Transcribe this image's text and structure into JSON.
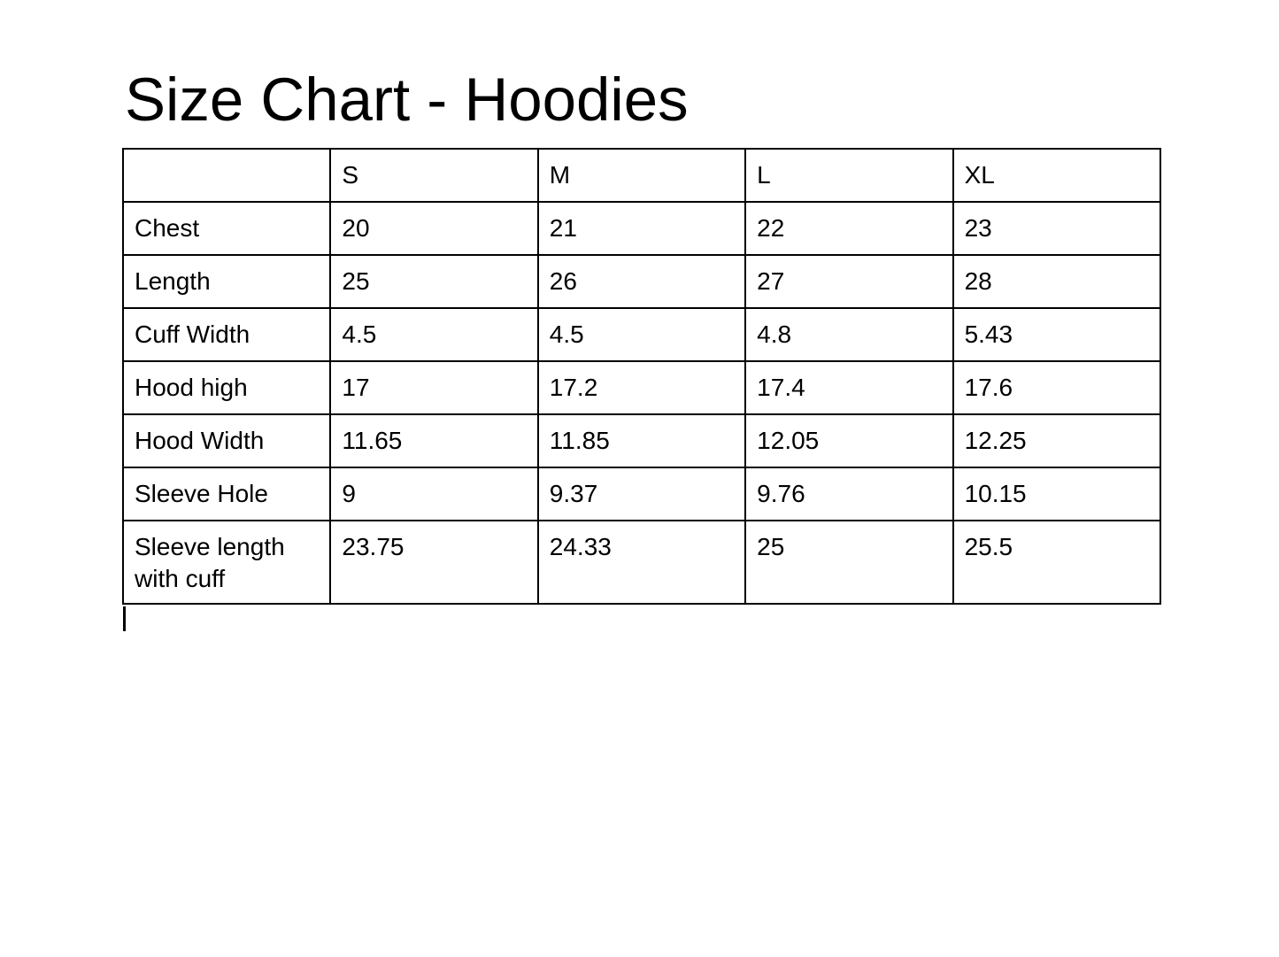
{
  "page": {
    "title": "Size Chart - Hoodies",
    "background_color": "#ffffff",
    "text_color": "#000000"
  },
  "size_chart": {
    "border_color": "#000000",
    "column_headers": [
      "",
      "S",
      "M",
      "L",
      "XL"
    ],
    "rows": [
      {
        "label": "Chest",
        "values": [
          "20",
          "21",
          "22",
          "23"
        ]
      },
      {
        "label": "Length",
        "values": [
          "25",
          "26",
          "27",
          "28"
        ]
      },
      {
        "label": "Cuff Width",
        "values": [
          "4.5",
          "4.5",
          "4.8",
          "5.43"
        ]
      },
      {
        "label": "Hood high",
        "values": [
          "17",
          "17.2",
          "17.4",
          "17.6"
        ]
      },
      {
        "label": "Hood Width",
        "values": [
          "11.65",
          "11.85",
          "12.05",
          "12.25"
        ]
      },
      {
        "label": "Sleeve Hole",
        "values": [
          "9",
          "9.37",
          "9.76",
          "10.15"
        ]
      },
      {
        "label": "Sleeve length with cuff",
        "values": [
          "23.75",
          "24.33",
          "25",
          "25.5"
        ]
      }
    ]
  },
  "caret": {
    "visible": true
  }
}
